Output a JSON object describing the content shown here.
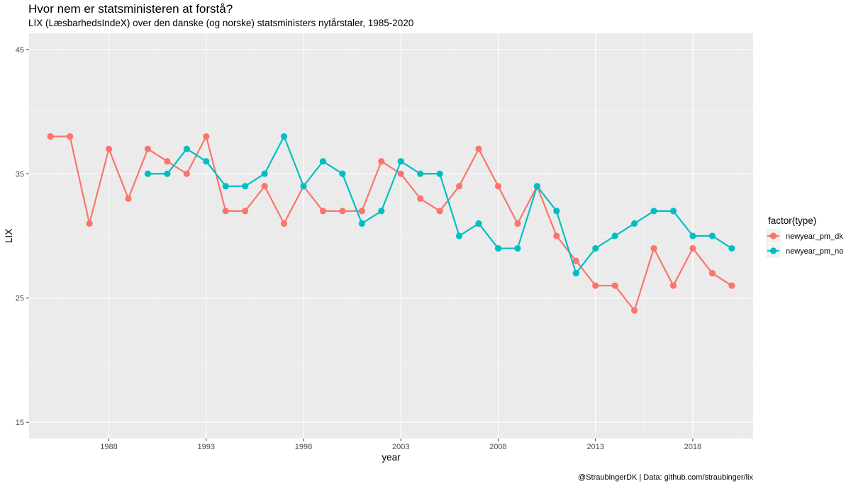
{
  "chart_data": {
    "type": "line",
    "title": "Hvor nem er statsministeren at forstå?",
    "subtitle": "LIX (LæsbarhedsIndeX) over den danske (og norske) statsministers nytårstaler, 1985-2020",
    "caption": "@StraubingerDK | Data: github.com/straubinger/lix",
    "xlabel": "year",
    "ylabel": "LIX",
    "xlim": [
      1983.9,
      2021.1
    ],
    "ylim": [
      13.7,
      46.3
    ],
    "x_ticks": [
      1988,
      1993,
      1998,
      2003,
      2008,
      2013,
      2018
    ],
    "y_ticks": [
      15,
      25,
      35,
      45
    ],
    "grid": true,
    "legend_title": "factor(type)",
    "legend_position": "right",
    "series": [
      {
        "name": "newyear_pm_dk",
        "color": "#F8766D",
        "x": [
          1985,
          1986,
          1987,
          1988,
          1989,
          1990,
          1991,
          1992,
          1993,
          1994,
          1995,
          1996,
          1997,
          1998,
          1999,
          2000,
          2001,
          2002,
          2003,
          2004,
          2005,
          2006,
          2007,
          2008,
          2009,
          2010,
          2011,
          2012,
          2013,
          2014,
          2015,
          2016,
          2017,
          2018,
          2019,
          2020
        ],
        "values": [
          38,
          38,
          31,
          37,
          33,
          37,
          36,
          35,
          38,
          32,
          32,
          34,
          31,
          34,
          32,
          32,
          32,
          36,
          35,
          33,
          32,
          34,
          37,
          34,
          31,
          34,
          30,
          28,
          26,
          26,
          24,
          29,
          26,
          29,
          27,
          26
        ]
      },
      {
        "name": "newyear_pm_no",
        "color": "#00BFC4",
        "x": [
          1990,
          1991,
          1992,
          1993,
          1994,
          1995,
          1996,
          1997,
          1998,
          1999,
          2000,
          2001,
          2002,
          2003,
          2004,
          2005,
          2006,
          2007,
          2008,
          2009,
          2010,
          2011,
          2012,
          2013,
          2014,
          2015,
          2016,
          2017,
          2018,
          2019,
          2020
        ],
        "values": [
          35,
          35,
          37,
          36,
          34,
          34,
          35,
          38,
          34,
          36,
          35,
          31,
          32,
          36,
          35,
          35,
          30,
          31,
          29,
          29,
          34,
          32,
          27,
          29,
          30,
          31,
          32,
          32,
          30,
          30,
          29
        ]
      }
    ]
  }
}
